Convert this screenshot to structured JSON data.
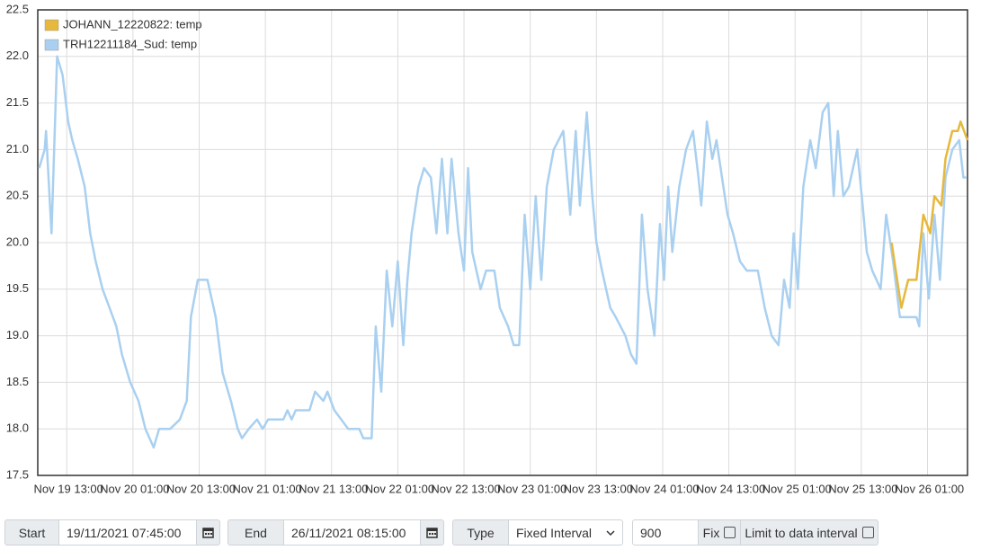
{
  "chart_data": {
    "type": "line",
    "series": [
      {
        "name": "JOHANN_12220822: temp",
        "color": "#e6b83c",
        "x": [
          "Nov 25 18:30",
          "Nov 25 20:15",
          "Nov 25 21:30",
          "Nov 25 23:00",
          "Nov 26 00:15",
          "Nov 26 01:30",
          "Nov 26 02:15",
          "Nov 26 03:30",
          "Nov 26 04:15",
          "Nov 26 05:30",
          "Nov 26 06:30",
          "Nov 26 07:00",
          "Nov 26 08:15"
        ],
        "values": [
          20.0,
          19.3,
          19.6,
          19.6,
          20.3,
          20.1,
          20.5,
          20.4,
          20.9,
          21.2,
          21.2,
          21.3,
          21.1
        ]
      },
      {
        "name": "TRH12211184_Sud: temp",
        "color": "#a9d0f0",
        "x": [
          "Nov 19 08:00",
          "Nov 19 09:00",
          "Nov 19 09:15",
          "Nov 19 10:15",
          "Nov 19 11:15",
          "Nov 19 12:15",
          "Nov 19 13:15",
          "Nov 19 14:00",
          "Nov 19 15:00",
          "Nov 19 16:15",
          "Nov 19 17:15",
          "Nov 19 18:15",
          "Nov 19 19:30",
          "Nov 19 20:45",
          "Nov 19 22:00",
          "Nov 19 23:00",
          "Nov 20 00:30",
          "Nov 20 02:00",
          "Nov 20 03:15",
          "Nov 20 04:45",
          "Nov 20 05:45",
          "Nov 20 07:45",
          "Nov 20 09:30",
          "Nov 20 10:45",
          "Nov 20 11:30",
          "Nov 20 12:45",
          "Nov 20 14:30",
          "Nov 20 16:00",
          "Nov 20 17:15",
          "Nov 20 18:45",
          "Nov 20 20:00",
          "Nov 20 20:45",
          "Nov 20 22:00",
          "Nov 20 23:30",
          "Nov 21 00:30",
          "Nov 21 01:30",
          "Nov 21 04:15",
          "Nov 21 05:00",
          "Nov 21 05:45",
          "Nov 21 06:30",
          "Nov 21 09:00",
          "Nov 21 10:00",
          "Nov 21 11:30",
          "Nov 21 12:15",
          "Nov 21 13:30",
          "Nov 21 14:45",
          "Nov 21 16:00",
          "Nov 21 18:00",
          "Nov 21 18:45",
          "Nov 21 20:15",
          "Nov 21 21:00",
          "Nov 21 22:00",
          "Nov 21 23:00",
          "Nov 22 00:00",
          "Nov 22 01:00",
          "Nov 22 02:00",
          "Nov 22 02:45",
          "Nov 22 03:30",
          "Nov 22 04:45",
          "Nov 22 05:45",
          "Nov 22 07:00",
          "Nov 22 08:00",
          "Nov 22 09:00",
          "Nov 22 10:00",
          "Nov 22 10:45",
          "Nov 22 12:00",
          "Nov 22 13:00",
          "Nov 22 13:45",
          "Nov 22 14:30",
          "Nov 22 16:00",
          "Nov 22 17:00",
          "Nov 22 18:30",
          "Nov 22 19:30",
          "Nov 22 21:00",
          "Nov 22 22:00",
          "Nov 22 23:00",
          "Nov 23 00:00",
          "Nov 23 01:00",
          "Nov 23 02:00",
          "Nov 23 03:00",
          "Nov 23 04:00",
          "Nov 23 05:15",
          "Nov 23 07:00",
          "Nov 23 08:15",
          "Nov 23 09:15",
          "Nov 23 10:00",
          "Nov 23 11:15",
          "Nov 23 12:15",
          "Nov 23 13:00",
          "Nov 23 14:00",
          "Nov 23 15:30",
          "Nov 23 16:30",
          "Nov 23 18:15",
          "Nov 23 19:15",
          "Nov 23 20:15",
          "Nov 23 21:15",
          "Nov 23 22:15",
          "Nov 23 23:30",
          "Nov 24 00:30",
          "Nov 24 01:15",
          "Nov 24 02:00",
          "Nov 24 02:45",
          "Nov 24 04:00",
          "Nov 24 05:15",
          "Nov 24 06:30",
          "Nov 24 07:30",
          "Nov 24 08:00",
          "Nov 24 09:00",
          "Nov 24 10:00",
          "Nov 24 10:45",
          "Nov 24 12:00",
          "Nov 24 12:45",
          "Nov 24 13:45",
          "Nov 24 15:00",
          "Nov 24 16:15",
          "Nov 24 18:15",
          "Nov 24 19:30",
          "Nov 24 20:45",
          "Nov 24 22:00",
          "Nov 24 23:00",
          "Nov 25 00:00",
          "Nov 25 00:45",
          "Nov 25 01:30",
          "Nov 25 02:30",
          "Nov 25 03:45",
          "Nov 25 04:45",
          "Nov 25 06:00",
          "Nov 25 07:00",
          "Nov 25 08:00",
          "Nov 25 08:45",
          "Nov 25 09:45",
          "Nov 25 10:45",
          "Nov 25 12:15",
          "Nov 25 13:15",
          "Nov 25 14:00",
          "Nov 25 15:00",
          "Nov 25 16:30",
          "Nov 25 17:30",
          "Nov 25 18:45",
          "Nov 25 20:00",
          "Nov 25 21:15",
          "Nov 25 23:00",
          "Nov 25 23:30",
          "Nov 26 00:15",
          "Nov 26 01:15",
          "Nov 26 02:15",
          "Nov 26 03:15",
          "Nov 26 04:15",
          "Nov 26 05:30",
          "Nov 26 06:45",
          "Nov 26 07:30",
          "Nov 26 08:00"
        ],
        "values": [
          20.8,
          21.0,
          21.2,
          20.1,
          22.0,
          21.8,
          21.3,
          21.1,
          20.9,
          20.6,
          20.1,
          19.8,
          19.5,
          19.3,
          19.1,
          18.8,
          18.5,
          18.3,
          18.0,
          17.8,
          18.0,
          18.0,
          18.1,
          18.3,
          19.2,
          19.6,
          19.6,
          19.2,
          18.6,
          18.3,
          18.0,
          17.9,
          18.0,
          18.1,
          18.0,
          18.1,
          18.1,
          18.2,
          18.1,
          18.2,
          18.2,
          18.4,
          18.3,
          18.4,
          18.2,
          18.1,
          18.0,
          18.0,
          17.9,
          17.9,
          19.1,
          18.4,
          19.7,
          19.1,
          19.8,
          18.9,
          19.6,
          20.1,
          20.6,
          20.8,
          20.7,
          20.1,
          20.9,
          20.1,
          20.9,
          20.1,
          19.7,
          20.8,
          19.9,
          19.5,
          19.7,
          19.7,
          19.3,
          19.1,
          18.9,
          18.9,
          20.3,
          19.5,
          20.5,
          19.6,
          20.6,
          21.0,
          21.2,
          20.3,
          21.2,
          20.4,
          21.4,
          20.5,
          20.0,
          19.7,
          19.3,
          19.2,
          19.0,
          18.8,
          18.7,
          20.3,
          19.5,
          19.0,
          20.2,
          19.6,
          20.6,
          19.9,
          20.6,
          21.0,
          21.2,
          20.7,
          20.4,
          21.3,
          20.9,
          21.1,
          20.6,
          20.3,
          20.1,
          19.8,
          19.7,
          19.7,
          19.3,
          19.0,
          18.9,
          19.6,
          19.3,
          20.1,
          19.5,
          20.6,
          21.1,
          20.8,
          21.4,
          21.5,
          20.5,
          21.2,
          20.5,
          20.6,
          21.0,
          20.4,
          19.9,
          19.7,
          19.5,
          20.3,
          19.8,
          19.2,
          19.2,
          19.2,
          19.1,
          20.1,
          19.4,
          20.3,
          19.6,
          20.7,
          21.0,
          21.1,
          20.7,
          20.7
        ]
      }
    ],
    "xlim": [
      "Nov 19 07:45",
      "Nov 26 08:15"
    ],
    "xticks": [
      "Nov 19 13:00",
      "Nov 20 01:00",
      "Nov 20 13:00",
      "Nov 21 01:00",
      "Nov 21 13:00",
      "Nov 22 01:00",
      "Nov 22 13:00",
      "Nov 23 01:00",
      "Nov 23 13:00",
      "Nov 24 01:00",
      "Nov 24 13:00",
      "Nov 25 01:00",
      "Nov 25 13:00",
      "Nov 26 01:00"
    ],
    "ylim": [
      17.5,
      22.5
    ],
    "yticks": [
      17.5,
      {
        "value": 18,
        "label": "18.0"
      },
      18.5,
      {
        "value": 19,
        "label": "19.0"
      },
      19.5,
      {
        "value": 20,
        "label": "20.0"
      },
      20.5,
      {
        "value": 21,
        "label": "21.0"
      },
      21.5,
      {
        "value": 22,
        "label": "22.0"
      },
      22.5
    ],
    "grid": true,
    "legend": "top-left"
  },
  "controls": {
    "start_label": "Start",
    "start_value": "19/11/2021 07:45:00",
    "end_label": "End",
    "end_value": "26/11/2021 08:15:00",
    "type_label": "Type",
    "type_value": "Fixed Interval",
    "interval_value": "900",
    "fix_label": "Fix",
    "limit_label": "Limit to data interval"
  }
}
